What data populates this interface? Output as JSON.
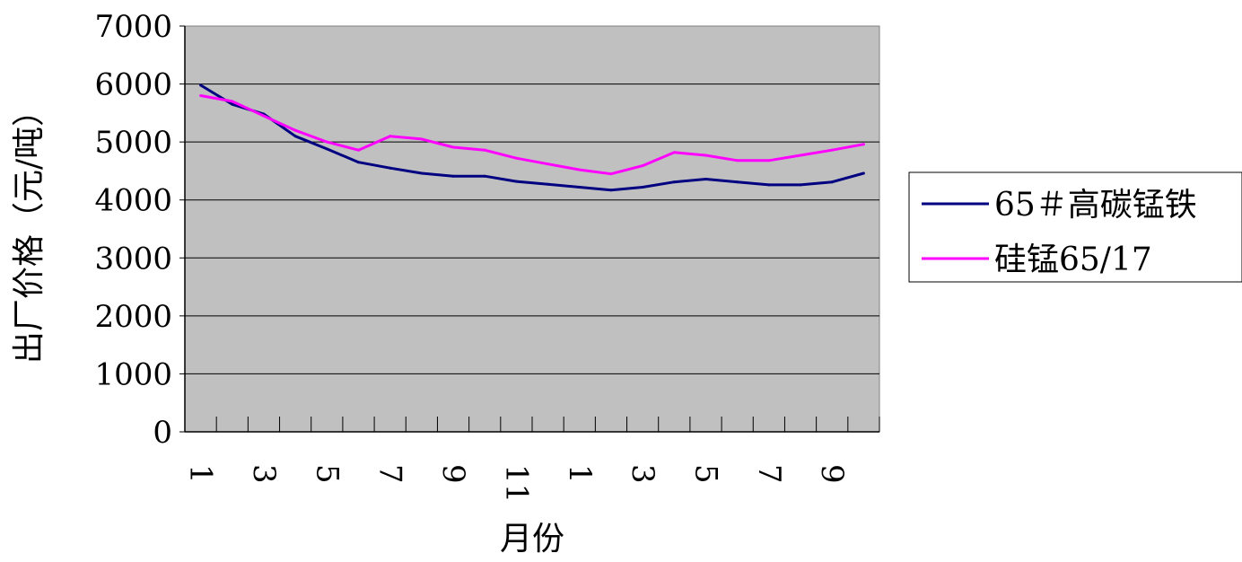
{
  "chart_data": {
    "type": "line",
    "title": "",
    "xlabel": "月份",
    "ylabel": "出厂价格（元/吨）",
    "ylim": [
      0,
      7000
    ],
    "yticks": [
      "0",
      "1000",
      "2000",
      "3000",
      "4000",
      "5000",
      "6000",
      "7000"
    ],
    "categories": [
      "1",
      "2",
      "3",
      "4",
      "5",
      "6",
      "7",
      "8",
      "9",
      "10",
      "11",
      "12",
      "1",
      "2",
      "3",
      "4",
      "5",
      "6",
      "7",
      "8",
      "9",
      "10"
    ],
    "xtick_labels": [
      "1",
      "",
      "3",
      "",
      "5",
      "",
      "7",
      "",
      "9",
      "",
      "11",
      "",
      "1",
      "",
      "3",
      "",
      "5",
      "",
      "7",
      "",
      "9",
      ""
    ],
    "grid": "horizontal",
    "plot_background": "#c0c0c0",
    "legend_position": "right",
    "series": [
      {
        "name": "65＃高碳锰铁",
        "color": "#000080",
        "values": [
          5980,
          5650,
          5480,
          5100,
          4880,
          4650,
          4550,
          4460,
          4410,
          4410,
          4320,
          4270,
          4220,
          4170,
          4220,
          4310,
          4360,
          4310,
          4260,
          4260,
          4310,
          4460
        ]
      },
      {
        "name": "硅锰65/17",
        "color": "#ff00ff",
        "values": [
          5800,
          5700,
          5450,
          5200,
          5000,
          4860,
          5100,
          5050,
          4910,
          4860,
          4720,
          4620,
          4520,
          4450,
          4590,
          4820,
          4770,
          4680,
          4680,
          4770,
          4860,
          4960
        ]
      }
    ]
  }
}
